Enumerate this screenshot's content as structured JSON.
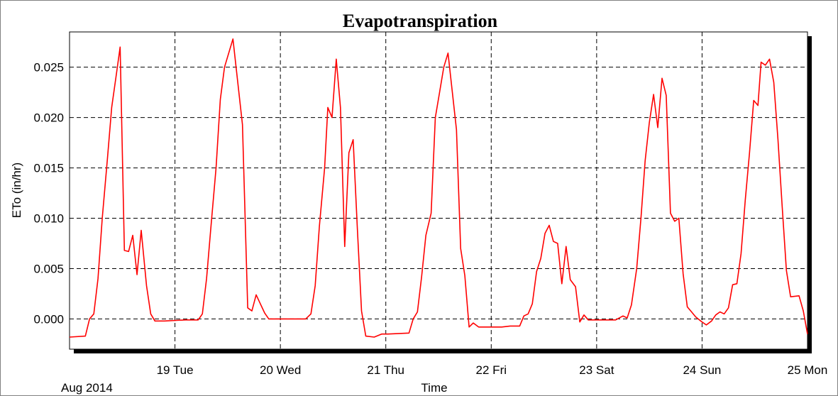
{
  "chart_data": {
    "type": "line",
    "title": "Evapotranspiration",
    "xlabel": "Time",
    "ylabel": "ETo (in/hr)",
    "x_date_label": "Aug 2014",
    "xlim_days": [
      18.0,
      25.0
    ],
    "x_ticks": [
      {
        "day": 19,
        "label": "19 Tue"
      },
      {
        "day": 20,
        "label": "20 Wed"
      },
      {
        "day": 21,
        "label": "21 Thu"
      },
      {
        "day": 22,
        "label": "22 Fri"
      },
      {
        "day": 23,
        "label": "23 Sat"
      },
      {
        "day": 24,
        "label": "24 Sun"
      },
      {
        "day": 25,
        "label": "25 Mon"
      }
    ],
    "ylim": [
      -0.003,
      0.0285
    ],
    "y_ticks": [
      {
        "value": 0.0,
        "label": "0.000"
      },
      {
        "value": 0.005,
        "label": "0.005"
      },
      {
        "value": 0.01,
        "label": "0.010"
      },
      {
        "value": 0.015,
        "label": "0.015"
      },
      {
        "value": 0.02,
        "label": "0.020"
      },
      {
        "value": 0.025,
        "label": "0.025"
      }
    ],
    "grid": true,
    "series": [
      {
        "color": "#ff0000",
        "points": [
          [
            18.0,
            -0.0018
          ],
          [
            18.15,
            -0.0017
          ],
          [
            18.19,
            0.0
          ],
          [
            18.23,
            0.0005
          ],
          [
            18.27,
            0.004
          ],
          [
            18.31,
            0.01
          ],
          [
            18.36,
            0.016
          ],
          [
            18.4,
            0.021
          ],
          [
            18.44,
            0.024
          ],
          [
            18.48,
            0.027
          ],
          [
            18.52,
            0.0068
          ],
          [
            18.56,
            0.0067
          ],
          [
            18.6,
            0.0083
          ],
          [
            18.64,
            0.0044
          ],
          [
            18.68,
            0.0088
          ],
          [
            18.73,
            0.0033
          ],
          [
            18.77,
            0.0005
          ],
          [
            18.81,
            -0.0002
          ],
          [
            18.9,
            -0.0002
          ],
          [
            19.1,
            -0.0001
          ],
          [
            19.22,
            -0.0001
          ],
          [
            19.26,
            0.0005
          ],
          [
            19.3,
            0.004
          ],
          [
            19.34,
            0.009
          ],
          [
            19.39,
            0.015
          ],
          [
            19.43,
            0.0218
          ],
          [
            19.47,
            0.025
          ],
          [
            19.55,
            0.0278
          ],
          [
            19.64,
            0.0193
          ],
          [
            19.69,
            0.0011
          ],
          [
            19.73,
            0.0008
          ],
          [
            19.77,
            0.0024
          ],
          [
            19.81,
            0.0015
          ],
          [
            19.85,
            0.0006
          ],
          [
            19.89,
            0.0
          ],
          [
            20.0,
            0.0
          ],
          [
            20.24,
            0.0
          ],
          [
            20.29,
            0.0005
          ],
          [
            20.33,
            0.0033
          ],
          [
            20.37,
            0.0092
          ],
          [
            20.42,
            0.015
          ],
          [
            20.45,
            0.021
          ],
          [
            20.49,
            0.02
          ],
          [
            20.53,
            0.0258
          ],
          [
            20.57,
            0.021
          ],
          [
            20.61,
            0.0072
          ],
          [
            20.65,
            0.0165
          ],
          [
            20.69,
            0.0178
          ],
          [
            20.73,
            0.009
          ],
          [
            20.77,
            0.0008
          ],
          [
            20.81,
            -0.0017
          ],
          [
            20.89,
            -0.0018
          ],
          [
            20.96,
            -0.0015
          ],
          [
            21.02,
            -0.0015
          ],
          [
            21.22,
            -0.0014
          ],
          [
            21.26,
            0.0
          ],
          [
            21.3,
            0.0007
          ],
          [
            21.34,
            0.0042
          ],
          [
            21.38,
            0.0083
          ],
          [
            21.43,
            0.0105
          ],
          [
            21.47,
            0.02
          ],
          [
            21.51,
            0.0225
          ],
          [
            21.55,
            0.025
          ],
          [
            21.59,
            0.0264
          ],
          [
            21.67,
            0.0188
          ],
          [
            21.71,
            0.007
          ],
          [
            21.75,
            0.0043
          ],
          [
            21.79,
            -0.0008
          ],
          [
            21.83,
            -0.0004
          ],
          [
            21.88,
            -0.0008
          ],
          [
            22.0,
            -0.0008
          ],
          [
            22.1,
            -0.0008
          ],
          [
            22.18,
            -0.0007
          ],
          [
            22.27,
            -0.0007
          ],
          [
            22.31,
            0.0003
          ],
          [
            22.35,
            0.0005
          ],
          [
            22.39,
            0.0015
          ],
          [
            22.43,
            0.0047
          ],
          [
            22.47,
            0.006
          ],
          [
            22.51,
            0.0085
          ],
          [
            22.55,
            0.0093
          ],
          [
            22.59,
            0.0077
          ],
          [
            22.63,
            0.0075
          ],
          [
            22.67,
            0.0035
          ],
          [
            22.71,
            0.0072
          ],
          [
            22.75,
            0.0039
          ],
          [
            22.8,
            0.0032
          ],
          [
            22.84,
            -0.0003
          ],
          [
            22.88,
            0.0004
          ],
          [
            22.92,
            -0.0001
          ],
          [
            23.0,
            -0.0001
          ],
          [
            23.18,
            -0.0001
          ],
          [
            23.25,
            0.0003
          ],
          [
            23.29,
            0.0001
          ],
          [
            23.33,
            0.0014
          ],
          [
            23.38,
            0.005
          ],
          [
            23.42,
            0.01
          ],
          [
            23.46,
            0.0157
          ],
          [
            23.5,
            0.0195
          ],
          [
            23.54,
            0.0223
          ],
          [
            23.58,
            0.019
          ],
          [
            23.62,
            0.0239
          ],
          [
            23.66,
            0.0222
          ],
          [
            23.7,
            0.0105
          ],
          [
            23.74,
            0.0097
          ],
          [
            23.78,
            0.01
          ],
          [
            23.82,
            0.0045
          ],
          [
            23.86,
            0.0012
          ],
          [
            23.9,
            0.0007
          ],
          [
            23.94,
            0.0002
          ],
          [
            24.0,
            -0.0003
          ],
          [
            24.04,
            -0.0006
          ],
          [
            24.09,
            -0.0002
          ],
          [
            24.13,
            0.0004
          ],
          [
            24.17,
            0.0007
          ],
          [
            24.21,
            0.0005
          ],
          [
            24.25,
            0.0011
          ],
          [
            24.29,
            0.0034
          ],
          [
            24.33,
            0.0035
          ],
          [
            24.37,
            0.0065
          ],
          [
            24.41,
            0.0118
          ],
          [
            24.45,
            0.0165
          ],
          [
            24.49,
            0.0217
          ],
          [
            24.53,
            0.0212
          ],
          [
            24.56,
            0.0255
          ],
          [
            24.6,
            0.0252
          ],
          [
            24.64,
            0.0258
          ],
          [
            24.68,
            0.0235
          ],
          [
            24.72,
            0.0178
          ],
          [
            24.76,
            0.0112
          ],
          [
            24.8,
            0.0048
          ],
          [
            24.84,
            0.0022
          ],
          [
            24.92,
            0.0023
          ],
          [
            24.96,
            0.0008
          ],
          [
            25.0,
            -0.0015
          ]
        ]
      }
    ]
  }
}
